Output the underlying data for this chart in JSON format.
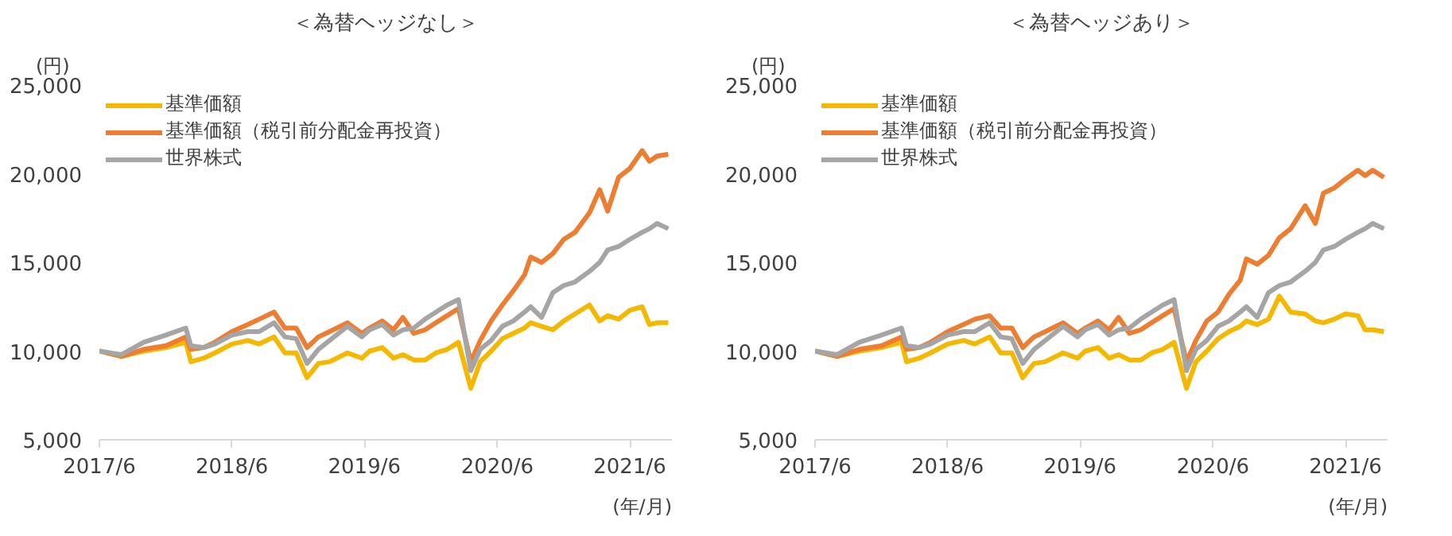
{
  "chart_data": [
    {
      "type": "line",
      "title": "＜為替ヘッジなし＞",
      "ylabel": "(円)",
      "xlabel": "(年/月)",
      "legend": "top left",
      "grid": false,
      "x": [
        "2017-06-01",
        "2017-08-01",
        "2017-10-01",
        "2017-12-01",
        "2018-01-25",
        "2018-02-08",
        "2018-03-15",
        "2018-04-15",
        "2018-06-01",
        "2018-07-15",
        "2018-08-15",
        "2018-09-25",
        "2018-10-25",
        "2018-11-25",
        "2018-12-25",
        "2019-01-25",
        "2019-02-25",
        "2019-04-15",
        "2019-05-25",
        "2019-06-15",
        "2019-07-20",
        "2019-08-20",
        "2019-09-15",
        "2019-10-15",
        "2019-11-15",
        "2019-12-15",
        "2020-01-15",
        "2020-02-15",
        "2020-03-20",
        "2020-04-15",
        "2020-05-15",
        "2020-06-15",
        "2020-07-15",
        "2020-08-15",
        "2020-09-01",
        "2020-10-01",
        "2020-11-01",
        "2020-12-01",
        "2021-01-01",
        "2021-02-10",
        "2021-03-10",
        "2021-04-01",
        "2021-05-01",
        "2021-06-01",
        "2021-07-05",
        "2021-07-25",
        "2021-08-15",
        "2021-09-15"
      ],
      "xlim": [
        "2017-06-01",
        "2021-09-25"
      ],
      "xticks": [
        {
          "value": "2017-06-01",
          "label": "2017/6"
        },
        {
          "value": "2018-06-01",
          "label": "2018/6"
        },
        {
          "value": "2019-06-01",
          "label": "2019/6"
        },
        {
          "value": "2020-06-01",
          "label": "2020/6"
        },
        {
          "value": "2021-06-01",
          "label": "2021/6"
        }
      ],
      "ylim": [
        5000,
        25000
      ],
      "yticks": [
        {
          "value": 5000,
          "label": "5,000"
        },
        {
          "value": 10000,
          "label": "10,000"
        },
        {
          "value": 15000,
          "label": "15,000"
        },
        {
          "value": 20000,
          "label": "20,000"
        },
        {
          "value": 25000,
          "label": "25,000"
        }
      ],
      "series": [
        {
          "name": "基準価額",
          "color": "#f5b800",
          "values": [
            10000,
            9700,
            10000,
            10200,
            10500,
            9400,
            9600,
            9900,
            10400,
            10600,
            10400,
            10800,
            9900,
            9900,
            8500,
            9300,
            9400,
            9900,
            9600,
            10000,
            10200,
            9600,
            9800,
            9500,
            9500,
            9900,
            10100,
            10500,
            7900,
            9400,
            10000,
            10700,
            11000,
            11300,
            11600,
            11400,
            11200,
            11700,
            12100,
            12600,
            11700,
            12000,
            11800,
            12300,
            12500,
            11500,
            11600,
            11600
          ]
        },
        {
          "name": "基準価額（税引前分配金再投資）",
          "color": "#ed7d31",
          "values": [
            10000,
            9700,
            10100,
            10300,
            10800,
            10100,
            10200,
            10500,
            11100,
            11500,
            11800,
            12200,
            11300,
            11300,
            10200,
            10800,
            11100,
            11600,
            11000,
            11300,
            11700,
            11200,
            11900,
            11000,
            11200,
            11600,
            12000,
            12400,
            9400,
            10600,
            11700,
            12600,
            13400,
            14300,
            15300,
            15000,
            15500,
            16300,
            16700,
            17800,
            19100,
            17900,
            19800,
            20300,
            21300,
            20700,
            21000,
            21100
          ]
        },
        {
          "name": "世界株式",
          "color": "#a5a5a5",
          "values": [
            10000,
            9800,
            10500,
            10900,
            11300,
            10300,
            10200,
            10400,
            10900,
            11100,
            11100,
            11600,
            10800,
            10700,
            9300,
            10100,
            10600,
            11400,
            10800,
            11200,
            11500,
            10900,
            11200,
            11300,
            11800,
            12200,
            12600,
            12900,
            8900,
            10100,
            10600,
            11400,
            11700,
            12200,
            12500,
            11900,
            13300,
            13700,
            13900,
            14500,
            15000,
            15700,
            15900,
            16300,
            16700,
            16900,
            17200,
            16900
          ]
        }
      ]
    },
    {
      "type": "line",
      "title": "＜為替ヘッジあり＞",
      "ylabel": "(円)",
      "xlabel": "(年/月)",
      "legend": "top left",
      "grid": false,
      "x": [
        "2017-06-01",
        "2017-08-01",
        "2017-10-01",
        "2017-12-01",
        "2018-01-25",
        "2018-02-08",
        "2018-03-15",
        "2018-04-15",
        "2018-06-01",
        "2018-07-15",
        "2018-08-15",
        "2018-09-25",
        "2018-10-25",
        "2018-11-25",
        "2018-12-25",
        "2019-01-25",
        "2019-02-25",
        "2019-04-15",
        "2019-05-25",
        "2019-06-15",
        "2019-07-20",
        "2019-08-20",
        "2019-09-15",
        "2019-10-15",
        "2019-11-15",
        "2019-12-15",
        "2020-01-15",
        "2020-02-15",
        "2020-03-20",
        "2020-04-15",
        "2020-05-15",
        "2020-06-15",
        "2020-07-15",
        "2020-08-15",
        "2020-09-01",
        "2020-10-01",
        "2020-11-01",
        "2020-12-01",
        "2021-01-01",
        "2021-02-10",
        "2021-03-10",
        "2021-04-01",
        "2021-05-01",
        "2021-06-01",
        "2021-07-05",
        "2021-07-25",
        "2021-08-15",
        "2021-09-15"
      ],
      "xlim": [
        "2017-06-01",
        "2021-09-25"
      ],
      "xticks": [
        {
          "value": "2017-06-01",
          "label": "2017/6"
        },
        {
          "value": "2018-06-01",
          "label": "2018/6"
        },
        {
          "value": "2019-06-01",
          "label": "2019/6"
        },
        {
          "value": "2020-06-01",
          "label": "2020/6"
        },
        {
          "value": "2021-06-01",
          "label": "2021/6"
        }
      ],
      "ylim": [
        5000,
        25000
      ],
      "yticks": [
        {
          "value": 5000,
          "label": "5,000"
        },
        {
          "value": 10000,
          "label": "10,000"
        },
        {
          "value": 15000,
          "label": "15,000"
        },
        {
          "value": 20000,
          "label": "20,000"
        },
        {
          "value": 25000,
          "label": "25,000"
        }
      ],
      "series": [
        {
          "name": "基準価額",
          "color": "#f5b800",
          "values": [
            10000,
            9700,
            10000,
            10200,
            10500,
            9400,
            9600,
            9900,
            10400,
            10600,
            10400,
            10800,
            9900,
            9900,
            8500,
            9300,
            9400,
            9900,
            9600,
            10000,
            10200,
            9600,
            9800,
            9500,
            9500,
            9900,
            10100,
            10500,
            7900,
            9400,
            10000,
            10700,
            11100,
            11400,
            11700,
            11500,
            11800,
            13100,
            12200,
            12100,
            11700,
            11600,
            11800,
            12100,
            12000,
            11200,
            11200,
            11100
          ]
        },
        {
          "name": "基準価額（税引前分配金再投資）",
          "color": "#ed7d31",
          "values": [
            10000,
            9700,
            10100,
            10300,
            10800,
            10100,
            10200,
            10500,
            11100,
            11500,
            11800,
            12000,
            11300,
            11300,
            10200,
            10800,
            11100,
            11600,
            11000,
            11300,
            11700,
            11200,
            11900,
            11000,
            11200,
            11600,
            12000,
            12400,
            9400,
            10600,
            11700,
            12200,
            13200,
            14000,
            15200,
            14900,
            15400,
            16400,
            16900,
            18200,
            17200,
            18900,
            19200,
            19700,
            20200,
            19900,
            20200,
            19800
          ]
        },
        {
          "name": "世界株式",
          "color": "#a5a5a5",
          "values": [
            10000,
            9800,
            10500,
            10900,
            11300,
            10300,
            10200,
            10400,
            10900,
            11100,
            11100,
            11600,
            10800,
            10700,
            9300,
            10100,
            10600,
            11400,
            10800,
            11200,
            11500,
            10900,
            11200,
            11300,
            11800,
            12200,
            12600,
            12900,
            8900,
            10100,
            10600,
            11400,
            11700,
            12200,
            12500,
            11900,
            13300,
            13700,
            13900,
            14500,
            15000,
            15700,
            15900,
            16300,
            16700,
            16900,
            17200,
            16900
          ]
        }
      ]
    }
  ]
}
